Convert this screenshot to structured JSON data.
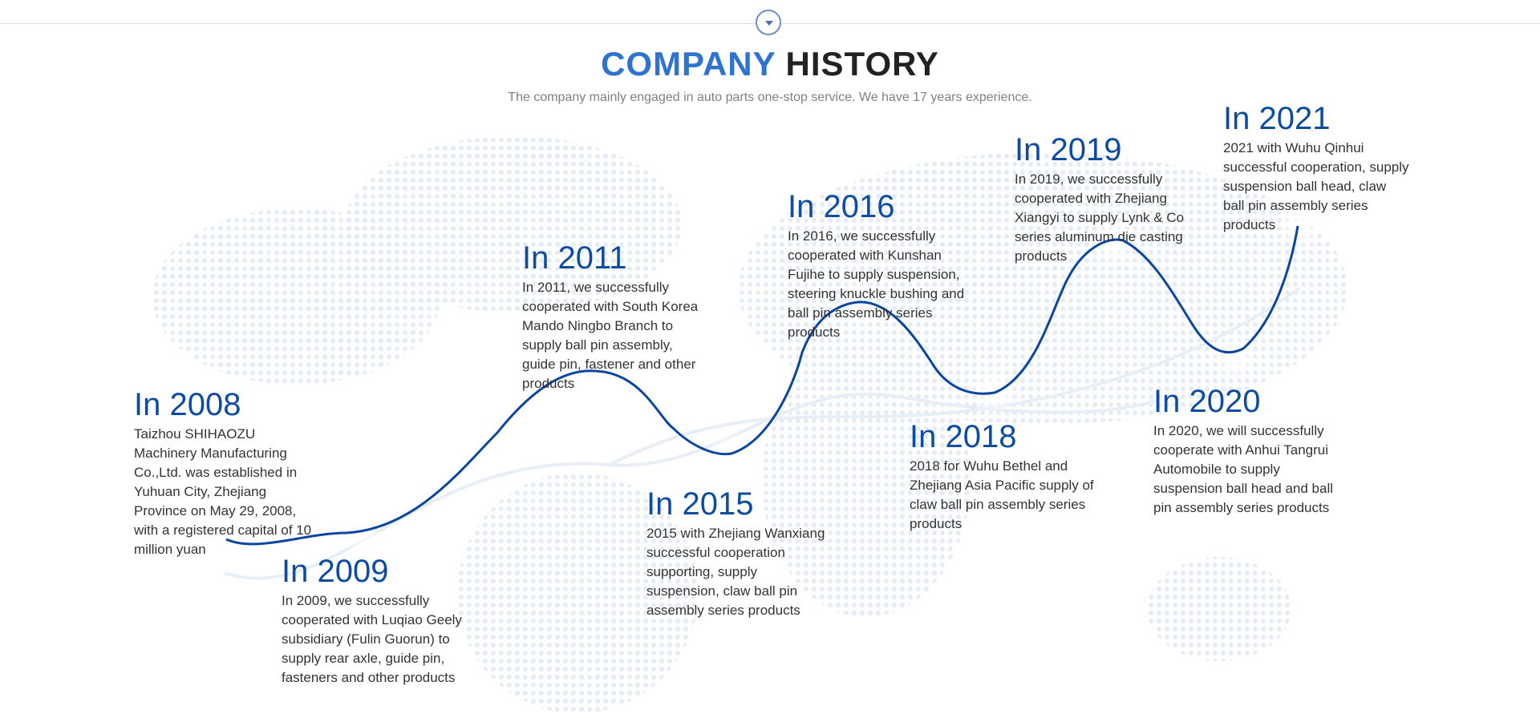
{
  "header": {
    "title_part1": "COMPANY",
    "title_part2": "HISTORY",
    "subtitle": "The company mainly engaged in auto parts one-stop service. We have 17 years experience."
  },
  "events": [
    {
      "year": "In 2008",
      "text": "Taizhou SHIHAOZU Machinery Manufacturing Co.,Ltd. was established in Yuhuan City, Zhejiang Province on May 29, 2008, with a registered capital of 10 million yuan"
    },
    {
      "year": "In 2009",
      "text": "In 2009, we successfully cooperated with Luqiao Geely subsidiary (Fulin Guorun) to supply rear axle, guide pin, fasteners and other products"
    },
    {
      "year": "In 2011",
      "text": "In 2011, we successfully cooperated with South Korea Mando Ningbo Branch to supply ball pin assembly, guide pin, fastener and other products"
    },
    {
      "year": "In 2015",
      "text": "2015 with Zhejiang Wanxiang successful cooperation supporting, supply suspension, claw ball pin assembly series products"
    },
    {
      "year": "In 2016",
      "text": "In 2016, we successfully cooperated with Kunshan Fujihe to supply suspension, steering knuckle bushing and ball pin assembly series products"
    },
    {
      "year": "In 2018",
      "text": "2018 for Wuhu Bethel and Zhejiang Asia Pacific supply of claw ball pin assembly series products"
    },
    {
      "year": "In 2019",
      "text": "In 2019, we successfully cooperated with Zhejiang Xiangyi to supply Lynk & Co series aluminum die casting products"
    },
    {
      "year": "In 2020",
      "text": "In 2020, we will successfully cooperate with Anhui Tangrui Automobile to supply suspension ball head and ball pin assembly series products"
    },
    {
      "year": "In 2021",
      "text": "2021 with Wuhu Qinhui successful cooperation, supply suspension ball head, claw ball pin assembly series products"
    }
  ]
}
